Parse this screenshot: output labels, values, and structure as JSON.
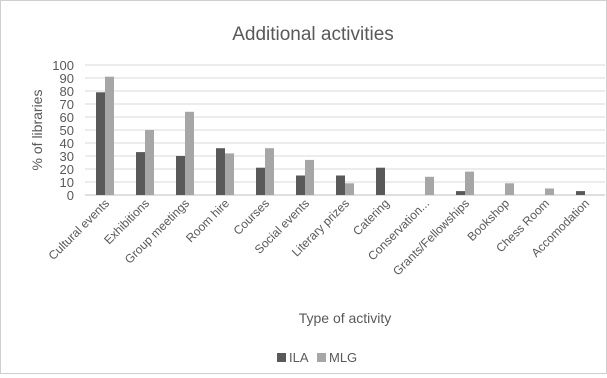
{
  "chart_data": {
    "type": "bar",
    "title": "Additional activities",
    "xlabel": "Type of activity",
    "ylabel": "% of libraries",
    "ylim": [
      0,
      100
    ],
    "yticks": [
      0,
      10,
      20,
      30,
      40,
      50,
      60,
      70,
      80,
      90,
      100
    ],
    "grid": true,
    "legend_position": "bottom",
    "categories": [
      "Cultural events",
      "Exhibitions",
      "Group meetings",
      "Room hire",
      "Courses",
      "Social events",
      "Literary prizes",
      "Catering",
      "Conservation...",
      "Grants/Fellowships",
      "Bookshop",
      "Chess Room",
      "Accomodation"
    ],
    "series": [
      {
        "name": "ILA",
        "color": "#595959",
        "values": [
          79,
          33,
          30,
          36,
          21,
          15,
          15,
          21,
          0,
          3,
          0,
          0,
          3
        ]
      },
      {
        "name": "MLG",
        "color": "#a6a6a6",
        "values": [
          91,
          50,
          64,
          32,
          36,
          27,
          9,
          0,
          14,
          18,
          9,
          5,
          0
        ]
      }
    ]
  }
}
